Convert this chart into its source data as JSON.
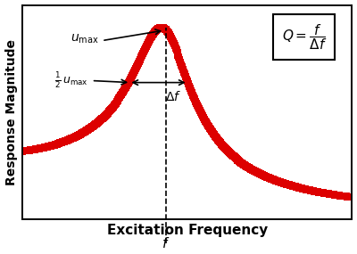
{
  "xlabel": "Excitation Frequency",
  "ylabel": "Response Magnitude",
  "background_color": "#ffffff",
  "curve_color": "#dd0000",
  "dashed_line_color": "#000000",
  "arrow_color": "#000000",
  "resonance_freq": 1.0,
  "damping": 0.17,
  "freq_min": 0.15,
  "freq_max": 2.1,
  "umax_label": "$u_{\\mathrm{max}}$",
  "half_umax_label": "$\\frac{1}{2}\\,u_{\\mathrm{max}}$",
  "delta_f_label": "$\\Delta f$",
  "f_label": "$f$",
  "figsize": [
    4.0,
    2.85
  ],
  "dpi": 100,
  "marker_size": 5.5,
  "marker_every": 8
}
